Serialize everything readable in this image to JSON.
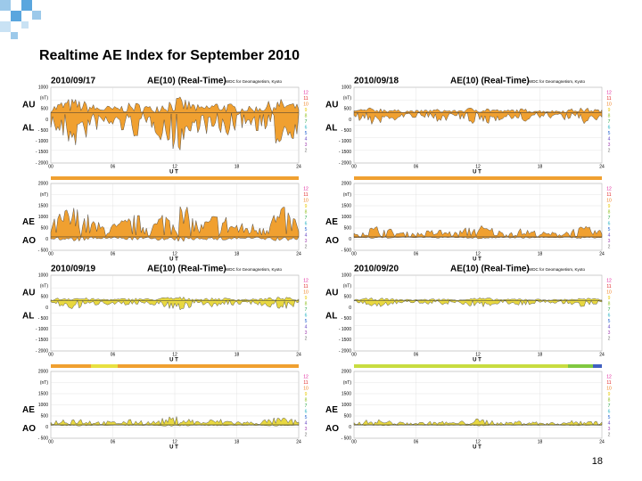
{
  "title": "Realtime AE Index for September 2010",
  "page_number": "18",
  "panels": [
    {
      "date": "2010/09/17",
      "heading": "AE(10) (Real-Time)",
      "source": "WDC for Geomagnetism, Kyoto",
      "upper": {
        "labels": [
          "AU",
          "AL"
        ],
        "ticks": [
          "1000",
          "(nT)",
          "500",
          "0",
          "- 500",
          "- 1000",
          "- 1500",
          "- 2000"
        ]
      },
      "lower": {
        "labels": [
          "AE",
          "AO"
        ],
        "ticks": [
          "2000",
          "(nT)",
          "1500",
          "1000",
          "500",
          "0",
          "- 500"
        ]
      },
      "xticks": [
        "00",
        "06",
        "12",
        "18",
        "24"
      ],
      "xlabel": "U T",
      "stations": [
        "12",
        "11",
        "10",
        "9",
        "8",
        "7",
        "6",
        "5",
        "4",
        "3",
        "2"
      ]
    },
    {
      "date": "2010/09/18",
      "heading": "AE(10) (Real-Time)",
      "source": "WDC for Geomagnetism, Kyoto",
      "upper": {
        "labels": [
          "AU",
          "AL"
        ],
        "ticks": [
          "1000",
          "(nT)",
          "500",
          "0",
          "- 500",
          "- 1000",
          "- 1500",
          "- 2000"
        ]
      },
      "lower": {
        "labels": [
          "AE",
          "AO"
        ],
        "ticks": [
          "2000",
          "(nT)",
          "1500",
          "1000",
          "500",
          "0",
          "- 500"
        ]
      },
      "xticks": [
        "00",
        "06",
        "12",
        "18",
        "24"
      ],
      "xlabel": "U T",
      "stations": [
        "12",
        "11",
        "10",
        "9",
        "8",
        "7",
        "6",
        "5",
        "4",
        "3",
        "2"
      ]
    },
    {
      "date": "2010/09/19",
      "heading": "AE(10) (Real-Time)",
      "source": "WDC for Geomagnetism, Kyoto",
      "upper": {
        "labels": [
          "AU",
          "AL"
        ],
        "ticks": [
          "1000",
          "(nT)",
          "500",
          "0",
          "- 500",
          "- 1000",
          "- 1500",
          "- 2000"
        ]
      },
      "lower": {
        "labels": [
          "AE",
          "AO"
        ],
        "ticks": [
          "2000",
          "(nT)",
          "1500",
          "1000",
          "500",
          "0",
          "- 500"
        ]
      },
      "xticks": [
        "00",
        "06",
        "12",
        "18",
        "24"
      ],
      "xlabel": "U T",
      "stations": [
        "12",
        "11",
        "10",
        "9",
        "8",
        "7",
        "6",
        "5",
        "4",
        "3",
        "2"
      ]
    },
    {
      "date": "2010/09/20",
      "heading": "AE(10) (Real-Time)",
      "source": "WDC for Geomagnetism, Kyoto",
      "upper": {
        "labels": [
          "AU",
          "AL"
        ],
        "ticks": [
          "1000",
          "(nT)",
          "500",
          "0",
          "- 500",
          "- 1000",
          "- 1500",
          "- 2000"
        ]
      },
      "lower": {
        "labels": [
          "AE",
          "AO"
        ],
        "ticks": [
          "2000",
          "(nT)",
          "1500",
          "1000",
          "500",
          "0",
          "- 500"
        ]
      },
      "xticks": [
        "00",
        "06",
        "12",
        "18",
        "24"
      ],
      "xlabel": "U T",
      "stations": [
        "12",
        "11",
        "10",
        "9",
        "8",
        "7",
        "6",
        "5",
        "4",
        "3",
        "2"
      ]
    }
  ]
}
